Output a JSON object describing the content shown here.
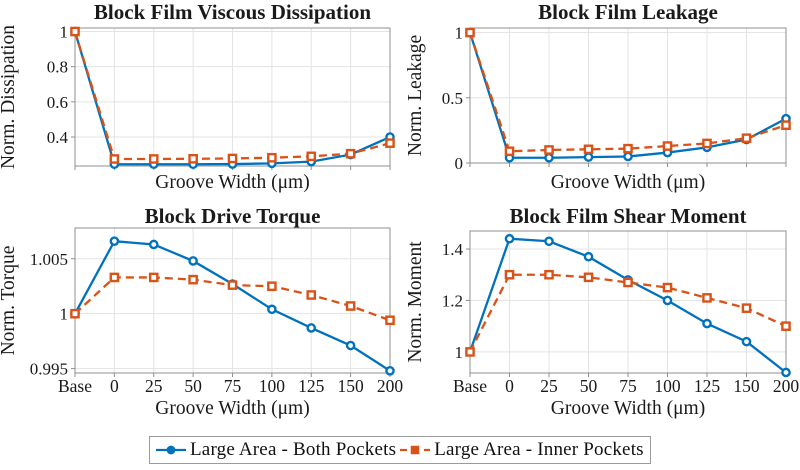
{
  "figure": {
    "background": "#ffffff"
  },
  "colors": {
    "series_blue": "#0072BD",
    "series_orange": "#D95319",
    "grid": "#e3e3e3",
    "axis_box": "#8f8f8f",
    "tick_text": "#1a1a1a",
    "title_text": "#000000",
    "legend_border": "#9a9a9a"
  },
  "legend": {
    "items": [
      {
        "label": "Large Area - Both Pockets",
        "color": "#0072BD",
        "line": "solid",
        "marker": "circle"
      },
      {
        "label": "Large Area - Inner Pockets",
        "color": "#D95319",
        "line": "dashed",
        "marker": "square"
      }
    ]
  },
  "chart_data": [
    {
      "type": "line",
      "title": "Block Film Viscous Dissipation",
      "xlabel": "Groove Width (μm)",
      "ylabel": "Norm. Dissipation",
      "categories": [
        "Base",
        "0",
        "25",
        "50",
        "75",
        "100",
        "125",
        "150",
        "200"
      ],
      "show_x_tick_labels": false,
      "yticks": [
        0.4,
        0.6,
        0.8,
        1
      ],
      "ytick_labels": [
        "0.4",
        "0.6",
        "0.8",
        "1"
      ],
      "ylim": [
        0.235,
        1.02
      ],
      "grid": true,
      "series": [
        {
          "name": "Large Area - Both Pockets",
          "color": "#0072BD",
          "line": "solid",
          "marker": "circle",
          "values": [
            1.0,
            0.245,
            0.245,
            0.245,
            0.246,
            0.25,
            0.26,
            0.3,
            0.4
          ]
        },
        {
          "name": "Large Area - Inner Pockets",
          "color": "#D95319",
          "line": "dashed",
          "marker": "square",
          "values": [
            1.0,
            0.275,
            0.275,
            0.276,
            0.278,
            0.282,
            0.29,
            0.305,
            0.365
          ]
        }
      ]
    },
    {
      "type": "line",
      "title": "Block Film Leakage",
      "xlabel": "Groove Width (μm)",
      "ylabel": "Norm. Leakage",
      "categories": [
        "Base",
        "0",
        "25",
        "50",
        "75",
        "100",
        "125",
        "150",
        "200"
      ],
      "show_x_tick_labels": false,
      "yticks": [
        0,
        0.5,
        1
      ],
      "ytick_labels": [
        "0",
        "0.5",
        "1"
      ],
      "ylim": [
        0,
        1.035
      ],
      "grid": true,
      "series": [
        {
          "name": "Large Area - Both Pockets",
          "color": "#0072BD",
          "line": "solid",
          "marker": "circle",
          "values": [
            1.0,
            0.04,
            0.04,
            0.045,
            0.05,
            0.08,
            0.12,
            0.18,
            0.34
          ]
        },
        {
          "name": "Large Area - Inner Pockets",
          "color": "#D95319",
          "line": "dashed",
          "marker": "square",
          "values": [
            1.0,
            0.09,
            0.1,
            0.105,
            0.11,
            0.13,
            0.15,
            0.19,
            0.29
          ]
        }
      ]
    },
    {
      "type": "line",
      "title": "Block Drive Torque",
      "xlabel": "Groove Width (μm)",
      "ylabel": "Norm. Torque",
      "categories": [
        "Base",
        "0",
        "25",
        "50",
        "75",
        "100",
        "125",
        "150",
        "200"
      ],
      "show_x_tick_labels": true,
      "yticks": [
        0.995,
        1,
        1.005
      ],
      "ytick_labels": [
        "0.995",
        "1",
        "1.005"
      ],
      "ylim": [
        0.9946,
        1.0078
      ],
      "grid": true,
      "series": [
        {
          "name": "Large Area - Both Pockets",
          "color": "#0072BD",
          "line": "solid",
          "marker": "circle",
          "values": [
            1.0,
            1.0066,
            1.0063,
            1.0048,
            1.0027,
            1.0004,
            0.9987,
            0.9971,
            0.9948
          ]
        },
        {
          "name": "Large Area - Inner Pockets",
          "color": "#D95319",
          "line": "dashed",
          "marker": "square",
          "values": [
            1.0,
            1.0033,
            1.0033,
            1.0031,
            1.0026,
            1.0025,
            1.0017,
            1.0007,
            0.9994
          ]
        }
      ]
    },
    {
      "type": "line",
      "title": "Block Film Shear Moment",
      "xlabel": "Groove Width (μm)",
      "ylabel": "Norm. Moment",
      "categories": [
        "Base",
        "0",
        "25",
        "50",
        "75",
        "100",
        "125",
        "150",
        "200"
      ],
      "show_x_tick_labels": true,
      "yticks": [
        1,
        1.2,
        1.4
      ],
      "ytick_labels": [
        "1",
        "1.2",
        "1.4"
      ],
      "ylim": [
        0.918,
        1.47
      ],
      "grid": true,
      "series": [
        {
          "name": "Large Area - Both Pockets",
          "color": "#0072BD",
          "line": "solid",
          "marker": "circle",
          "values": [
            1.0,
            1.44,
            1.43,
            1.37,
            1.28,
            1.2,
            1.11,
            1.04,
            0.92
          ]
        },
        {
          "name": "Large Area - Inner Pockets",
          "color": "#D95319",
          "line": "dashed",
          "marker": "square",
          "values": [
            1.0,
            1.3,
            1.3,
            1.29,
            1.27,
            1.25,
            1.21,
            1.17,
            1.1
          ]
        }
      ]
    }
  ]
}
